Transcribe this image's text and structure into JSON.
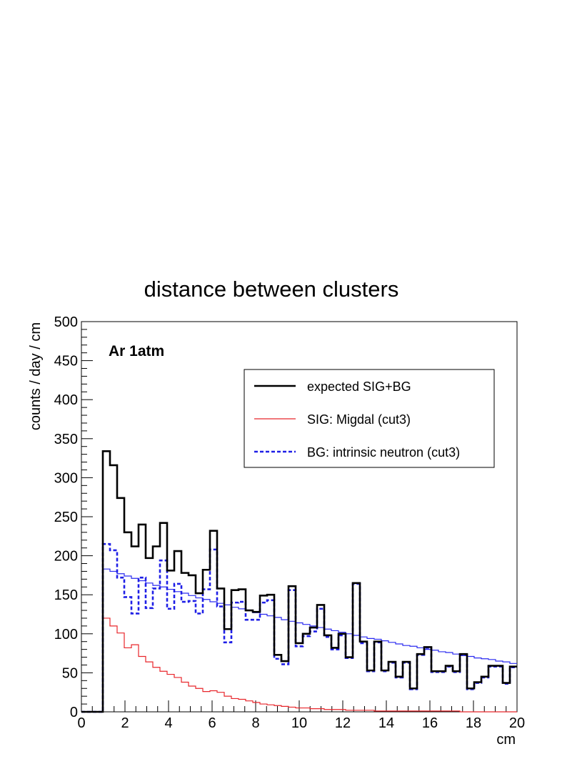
{
  "chart_data": {
    "type": "line",
    "title": "distance between clusters",
    "xlabel": "cm",
    "ylabel": "counts / day / cm",
    "annotation": "Ar 1atm",
    "xlim": [
      0,
      20
    ],
    "ylim": [
      0,
      500
    ],
    "bin_width": 0.3333,
    "x_ticks": [
      "0",
      "2",
      "4",
      "6",
      "8",
      "10",
      "12",
      "14",
      "16",
      "18",
      "20"
    ],
    "y_ticks": [
      "0",
      "50",
      "100",
      "150",
      "200",
      "250",
      "300",
      "350",
      "400",
      "450",
      "500"
    ],
    "grid": false,
    "legend_position": "top-right",
    "series": [
      {
        "name": "expected SIG+BG",
        "color": "#000000",
        "style": "solid-thick",
        "values": [
          0,
          0,
          0,
          334,
          316,
          274,
          230,
          212,
          240,
          197,
          212,
          242,
          181,
          206,
          178,
          175,
          152,
          182,
          232,
          158,
          106,
          156,
          157,
          130,
          128,
          149,
          150,
          73,
          65,
          161,
          88,
          100,
          108,
          137,
          98,
          82,
          100,
          70,
          165,
          90,
          53,
          90,
          53,
          64,
          45,
          64,
          30,
          74,
          83,
          52,
          52,
          59,
          52,
          74,
          30,
          38,
          45,
          59,
          59,
          37,
          58
        ]
      },
      {
        "name": "SIG: Migdal (cut3)",
        "color": "#e8262b",
        "style": "solid-thin",
        "values": [
          0,
          0,
          0,
          120,
          110,
          101,
          82,
          86,
          71,
          64,
          57,
          52,
          48,
          44,
          38,
          33,
          30,
          26,
          27,
          25,
          20,
          17,
          16,
          14,
          12,
          10,
          9,
          8,
          7,
          6,
          5,
          5,
          4,
          4,
          3,
          3,
          3,
          2,
          2,
          2,
          2,
          1,
          1,
          1,
          1,
          1,
          1,
          1,
          1,
          1,
          1,
          1,
          1,
          0,
          0,
          0,
          0,
          0,
          0,
          0,
          0
        ]
      },
      {
        "name": "BG: intrinsic neutron (cut3)",
        "color": "#1f1fe6",
        "style": "dashed",
        "values": [
          0,
          0,
          0,
          215,
          207,
          172,
          147,
          126,
          172,
          133,
          158,
          194,
          132,
          164,
          141,
          142,
          126,
          157,
          208,
          135,
          89,
          140,
          141,
          118,
          118,
          140,
          143,
          68,
          61,
          156,
          84,
          97,
          103,
          132,
          96,
          80,
          98,
          69,
          164,
          88,
          52,
          89,
          52,
          63,
          44,
          63,
          29,
          73,
          82,
          51,
          51,
          58,
          51,
          73,
          29,
          37,
          44,
          58,
          58,
          36,
          57
        ]
      },
      {
        "color": "#2a2af0",
        "style": "solid-thin",
        "values": [
          0,
          0,
          0,
          183,
          180,
          177,
          174,
          171,
          168,
          165,
          162,
          160,
          157,
          154,
          152,
          149,
          146,
          144,
          141,
          139,
          137,
          134,
          132,
          130,
          127,
          125,
          123,
          121,
          118,
          116,
          114,
          112,
          110,
          108,
          106,
          104,
          102,
          100,
          98,
          96,
          94,
          93,
          91,
          89,
          87,
          85,
          84,
          82,
          80,
          79,
          77,
          76,
          74,
          72,
          71,
          69,
          68,
          67,
          65,
          64,
          62
        ]
      }
    ]
  }
}
